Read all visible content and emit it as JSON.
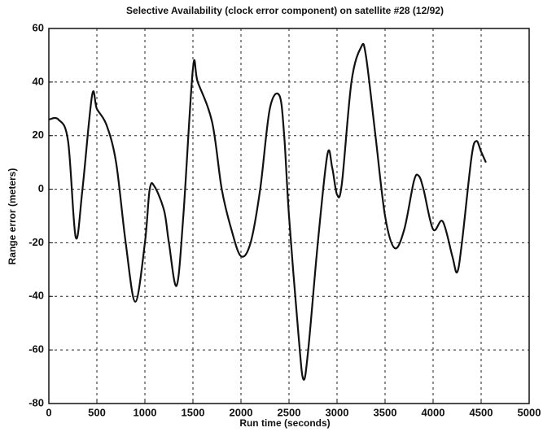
{
  "chart_data": {
    "type": "line",
    "title": "Selective Availability (clock error component) on satellite #28 (12/92)",
    "x_label": "Run time (seconds)",
    "y_label": "Range error (meters)",
    "x": [
      0,
      100,
      200,
      280,
      350,
      450,
      500,
      600,
      700,
      800,
      900,
      1000,
      1050,
      1100,
      1200,
      1250,
      1330,
      1400,
      1500,
      1550,
      1700,
      1800,
      1900,
      2000,
      2100,
      2200,
      2300,
      2400,
      2450,
      2500,
      2600,
      2650,
      2700,
      2800,
      2900,
      2950,
      3000,
      3050,
      3150,
      3250,
      3300,
      3400,
      3500,
      3600,
      3700,
      3800,
      3850,
      3900,
      4000,
      4100,
      4200,
      4250,
      4300,
      4400,
      4450,
      4500,
      4550
    ],
    "values": [
      26,
      26,
      18,
      -18,
      0,
      35,
      30,
      24,
      10,
      -20,
      -42,
      -20,
      0,
      1,
      -8,
      -20,
      -36,
      -10,
      45,
      40,
      25,
      0,
      -15,
      -25,
      -20,
      0,
      30,
      35,
      20,
      -10,
      -55,
      -71,
      -60,
      -20,
      13,
      8,
      -2,
      2,
      40,
      53,
      50,
      20,
      -10,
      -22,
      -15,
      3,
      5,
      0,
      -15,
      -12,
      -25,
      -31,
      -20,
      12,
      18,
      14,
      10
    ],
    "color": "#111111",
    "xlim": [
      0,
      5000
    ],
    "xticks": [
      0,
      500,
      1000,
      1500,
      2000,
      2500,
      3000,
      3500,
      4000,
      4500,
      5000
    ],
    "ylim": [
      -80,
      60
    ],
    "yticks": [
      -80,
      -60,
      -40,
      -20,
      0,
      20,
      40,
      60
    ],
    "grid": true
  }
}
